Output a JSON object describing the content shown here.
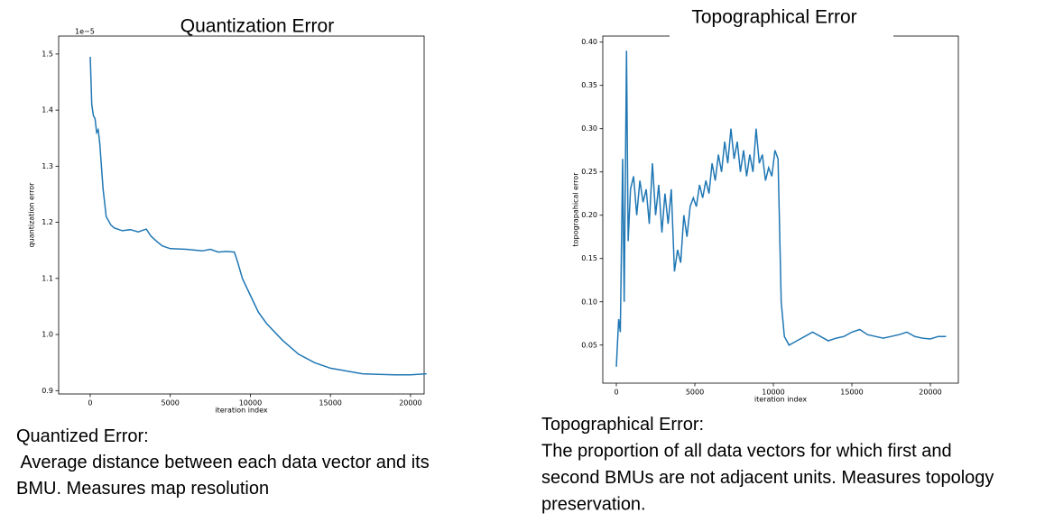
{
  "chart_data": [
    {
      "type": "line",
      "title": "Quantization Error",
      "xlabel": "iteration index",
      "ylabel": "quantization error",
      "offset_label": "1e−5",
      "x": [
        0,
        100,
        200,
        300,
        400,
        500,
        600,
        700,
        800,
        1000,
        1300,
        1500,
        2000,
        2500,
        3000,
        3500,
        3800,
        4200,
        4500,
        5000,
        6000,
        7000,
        7500,
        8000,
        8500,
        9000,
        9200,
        9500,
        10000,
        10500,
        11000,
        12000,
        13000,
        14000,
        15000,
        16000,
        17000,
        18000,
        19000,
        20000,
        21000
      ],
      "values": [
        1.495,
        1.41,
        1.39,
        1.385,
        1.36,
        1.365,
        1.34,
        1.3,
        1.26,
        1.21,
        1.195,
        1.19,
        1.185,
        1.187,
        1.183,
        1.188,
        1.175,
        1.165,
        1.158,
        1.153,
        1.152,
        1.149,
        1.152,
        1.147,
        1.148,
        1.147,
        1.13,
        1.1,
        1.07,
        1.04,
        1.02,
        0.99,
        0.965,
        0.95,
        0.94,
        0.935,
        0.93,
        0.929,
        0.928,
        0.928,
        0.93
      ],
      "color": "#1f77b4",
      "xlim": [
        -1970,
        20850
      ],
      "ylim": [
        0.894,
        1.532
      ],
      "xticks": [
        0,
        5000,
        10000,
        15000,
        20000
      ],
      "yticks": [
        0.9,
        {
          "value": 1,
          "label": "1.0"
        },
        1.1,
        1.2,
        1.3,
        1.4,
        1.5
      ]
    },
    {
      "type": "line",
      "title": "Topographical Error",
      "xlabel": "iteration index",
      "ylabel": "topograpahical error",
      "x": [
        0,
        150,
        250,
        400,
        500,
        650,
        750,
        900,
        1100,
        1300,
        1500,
        1700,
        1900,
        2100,
        2300,
        2500,
        2700,
        2900,
        3100,
        3300,
        3500,
        3700,
        3900,
        4100,
        4300,
        4500,
        4700,
        4900,
        5100,
        5300,
        5500,
        5700,
        5900,
        6100,
        6300,
        6500,
        6700,
        6900,
        7100,
        7300,
        7500,
        7700,
        7900,
        8100,
        8300,
        8500,
        8700,
        8900,
        9100,
        9300,
        9500,
        9700,
        9900,
        10100,
        10300,
        10500,
        10700,
        11000,
        11500,
        12000,
        12500,
        13000,
        13500,
        14000,
        14500,
        15000,
        15500,
        16000,
        16500,
        17000,
        17500,
        18000,
        18500,
        19000,
        19500,
        20000,
        20500,
        21000
      ],
      "values": [
        0.025,
        0.08,
        0.065,
        0.265,
        0.1,
        0.39,
        0.17,
        0.23,
        0.245,
        0.2,
        0.24,
        0.215,
        0.23,
        0.19,
        0.26,
        0.2,
        0.235,
        0.18,
        0.225,
        0.19,
        0.23,
        0.135,
        0.16,
        0.145,
        0.2,
        0.175,
        0.21,
        0.22,
        0.21,
        0.235,
        0.22,
        0.24,
        0.225,
        0.26,
        0.24,
        0.27,
        0.25,
        0.285,
        0.26,
        0.3,
        0.265,
        0.285,
        0.25,
        0.275,
        0.245,
        0.27,
        0.25,
        0.3,
        0.26,
        0.27,
        0.24,
        0.255,
        0.245,
        0.275,
        0.265,
        0.1,
        0.06,
        0.05,
        0.055,
        0.06,
        0.065,
        0.06,
        0.055,
        0.058,
        0.06,
        0.065,
        0.068,
        0.062,
        0.06,
        0.058,
        0.06,
        0.062,
        0.065,
        0.06,
        0.058,
        0.057,
        0.06,
        0.06
      ],
      "color": "#1f77b4",
      "xlim": [
        -862,
        21780
      ],
      "ylim": [
        0.006,
        0.407
      ],
      "xticks": [
        0,
        5000,
        10000,
        15000,
        20000
      ],
      "yticks": [
        0.05,
        {
          "value": 0.1,
          "label": "0.10"
        },
        0.15,
        {
          "value": 0.2,
          "label": "0.20"
        },
        0.25,
        {
          "value": 0.3,
          "label": "0.30"
        },
        0.35,
        {
          "value": 0.4,
          "label": "0.40"
        }
      ]
    }
  ],
  "captions": [
    {
      "lines": [
        "Quantized Error:",
        " Average distance between each data vector and its",
        "BMU. Measures map resolution"
      ]
    },
    {
      "lines": [
        "Topographical Error:",
        "The proportion of all data vectors for which first and",
        "second BMUs are not adjacent units. Measures topology",
        "preservation."
      ]
    }
  ]
}
